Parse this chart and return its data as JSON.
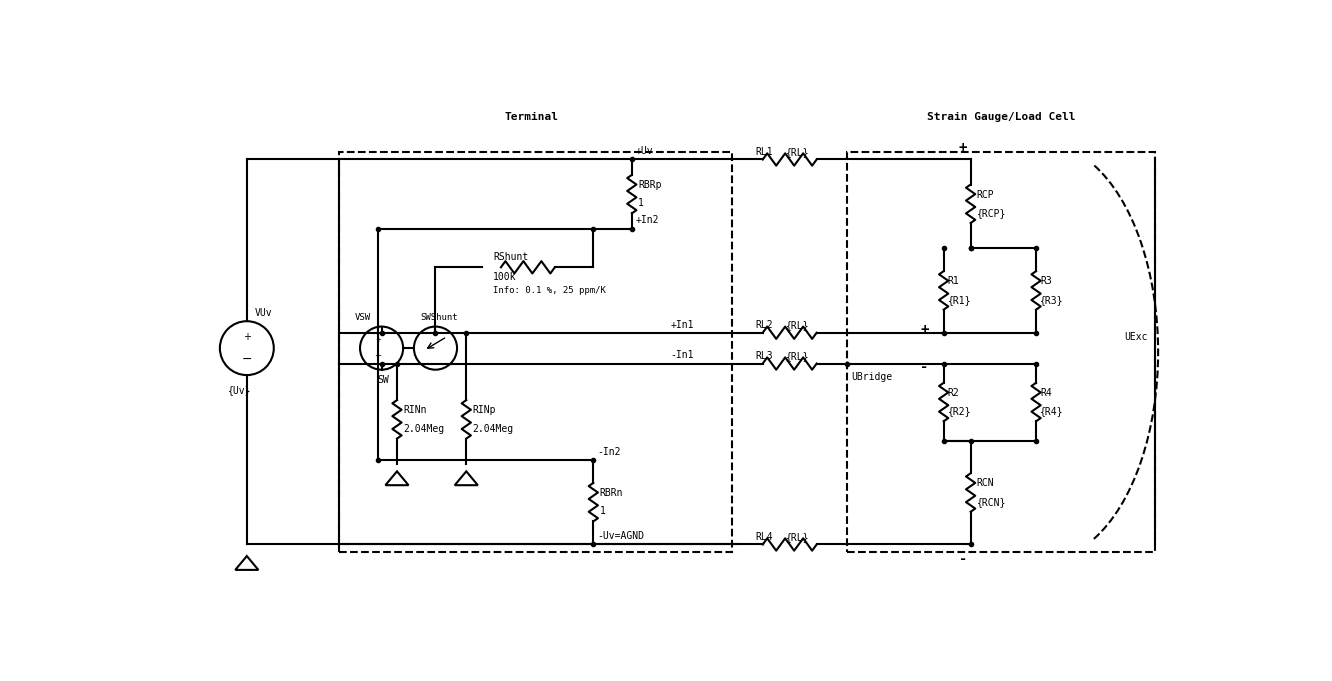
{
  "bg_color": "#ffffff",
  "line_color": "#000000",
  "fig_width": 13.32,
  "fig_height": 6.81,
  "labels": {
    "terminal": "Terminal",
    "strain_gauge": "Strain Gauge/Load Cell",
    "VUv": "VUv",
    "Uv": "{Uv}",
    "VSW": "VSW",
    "SW": "SW",
    "SWShunt": "SWShunt",
    "RShunt": "RShunt",
    "RShunt_val": "100k",
    "RShunt_info": "Info: 0.1 %, 25 ppm/K",
    "RBRp": "RBRp",
    "RBRp_val": "1",
    "RBRn": "RBRn",
    "RBRn_val": "1",
    "RINn": "RINn",
    "RINn_val": "2.04Meg",
    "RINp": "RINp",
    "RINp_val": "2.04Meg",
    "RCP": "RCP",
    "RCP_val": "{RCP}",
    "RCN": "RCN",
    "RCN_val": "{RCN}",
    "R1": "R1",
    "R1_val": "{R1}",
    "R2": "R2",
    "R2_val": "{R2}",
    "R3": "R3",
    "R3_val": "{R3}",
    "R4": "R4",
    "R4_val": "{R4}",
    "RL1": "RL1",
    "RL1_val": "{RL}",
    "RL2": "RL2",
    "RL2_val": "{RL}",
    "RL3": "RL3",
    "RL3_val": "{RL}",
    "RL4": "RL4",
    "RL4_val": "{RL}",
    "plus_Uv": "+Uv",
    "plus_In2": "+In2",
    "plus_In1": "+In1",
    "minus_In1": "-In1",
    "minus_In2": "-In2",
    "minus_Uv_AGND": "-Uv=AGND",
    "UExc": "UExc",
    "UBridge": "UBridge",
    "plus_sg": "+",
    "minus_sg": "-",
    "plus_bridge": "+",
    "minus_bridge": "-"
  }
}
